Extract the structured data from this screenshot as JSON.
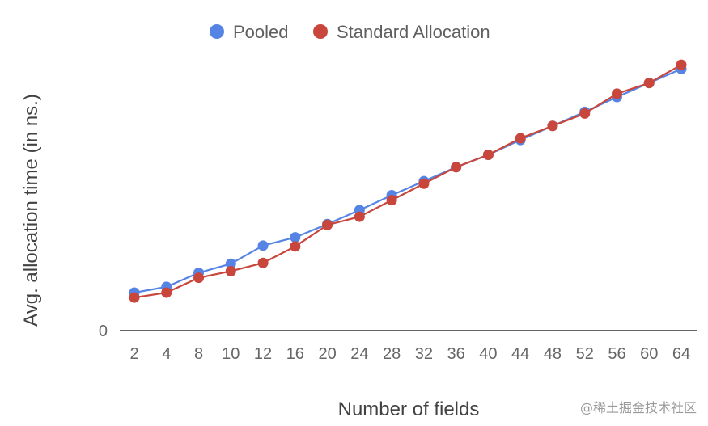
{
  "chart_data": {
    "type": "line",
    "categories": [
      "2",
      "4",
      "8",
      "10",
      "12",
      "16",
      "20",
      "24",
      "28",
      "32",
      "36",
      "40",
      "44",
      "48",
      "52",
      "56",
      "60",
      "64"
    ],
    "series": [
      {
        "name": "Pooled",
        "color": "#5584e4",
        "values": [
          4.6,
          5.3,
          7.0,
          8.1,
          10.3,
          11.3,
          12.9,
          14.6,
          16.4,
          18.1,
          19.8,
          21.3,
          23.1,
          24.8,
          26.5,
          28.3,
          30.0,
          31.7
        ]
      },
      {
        "name": "Standard Allocation",
        "color": "#c9463d",
        "values": [
          4.0,
          4.6,
          6.4,
          7.2,
          8.2,
          10.2,
          12.8,
          13.8,
          15.8,
          17.8,
          19.8,
          21.3,
          23.3,
          24.8,
          26.3,
          28.7,
          30.0,
          32.2
        ]
      }
    ],
    "xlabel": "Number of fields",
    "ylabel": "Avg. allocation time (in ns.)",
    "yticks": [
      "0"
    ],
    "ylim": [
      0,
      33
    ],
    "grid": false,
    "legend": "top"
  },
  "watermark": "@稀土掘金技术社区"
}
